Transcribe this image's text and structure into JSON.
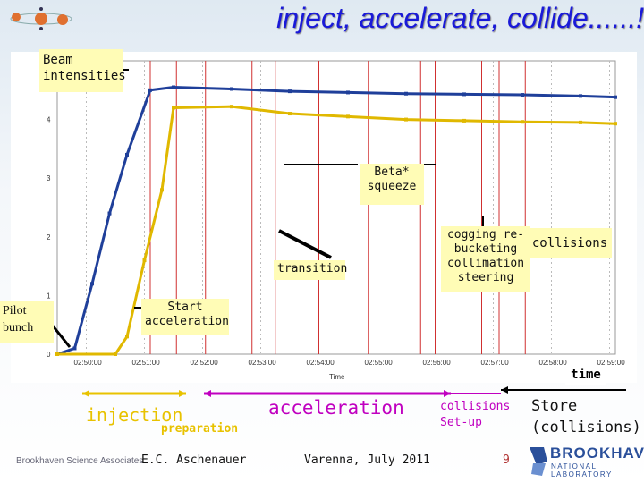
{
  "slide": {
    "title": "inject, accelerate, collide......!",
    "page_number": "9",
    "author": "E.C. Aschenauer",
    "venue": "Varenna, July 2011",
    "org_footer": "Brookhaven Science Associates",
    "lab_logo": {
      "line1": "BROOKHAVEN",
      "line2": "NATIONAL LABORATORY"
    }
  },
  "annotations": {
    "beam_intensities": "Beam intensities",
    "beta_squeeze": "Beta* squeeze",
    "transition": "transition",
    "cogging": "cogging re-bucketing collimation steering",
    "collisions": "collisions",
    "start_acceleration": "Start acceleration",
    "pilot_bunch": "Pilot bunch",
    "time": "time"
  },
  "phases": {
    "injection": "injection",
    "preparation": "preparation",
    "acceleration": "acceleration",
    "collisions_setup": "collisions Set-up",
    "store": "Store (collisions)"
  },
  "colors": {
    "title": "#1a1ad8",
    "injection": "#e8c200",
    "acceleration": "#c000c0",
    "blue_beam": "#1f3f9a",
    "yellow_beam": "#e0b800",
    "marker_red": "#d03030"
  },
  "chart_data": {
    "type": "line",
    "x_tick_labels": [
      "02:50:00",
      "02:51:00",
      "02:52:00",
      "02:53:00",
      "02:54:00",
      "02:55:00",
      "02:56:00",
      "02:57:00",
      "02:58:00",
      "02:59:00"
    ],
    "y_tick_labels": [
      "0",
      "1",
      "2",
      "3",
      "4"
    ],
    "xlabel": "Time",
    "series": [
      {
        "color": "#1f3f9a",
        "x": [
          0.0,
          0.3,
          0.6,
          0.9,
          1.2,
          1.6,
          2.0,
          3.0,
          4.0,
          5.0,
          6.0,
          7.0,
          8.0,
          9.0,
          9.6
        ],
        "y": [
          0.0,
          0.1,
          1.2,
          2.4,
          3.4,
          4.5,
          4.55,
          4.52,
          4.48,
          4.46,
          4.44,
          4.43,
          4.42,
          4.4,
          4.38
        ]
      },
      {
        "color": "#e0b800",
        "x": [
          0.0,
          1.0,
          1.2,
          1.5,
          1.8,
          2.0,
          3.0,
          4.0,
          5.0,
          6.0,
          7.0,
          8.0,
          9.0,
          9.6
        ],
        "y": [
          0.0,
          0.0,
          0.3,
          1.6,
          2.8,
          4.2,
          4.22,
          4.1,
          4.05,
          4.0,
          3.98,
          3.96,
          3.95,
          3.93
        ]
      }
    ],
    "ylim": [
      0,
      5
    ],
    "xlim": [
      0,
      9.6
    ],
    "vertical_markers": [
      1.6,
      2.05,
      2.3,
      2.55,
      3.35,
      3.75,
      4.5,
      5.35,
      6.25,
      6.5,
      7.3,
      7.6,
      8.05
    ]
  }
}
